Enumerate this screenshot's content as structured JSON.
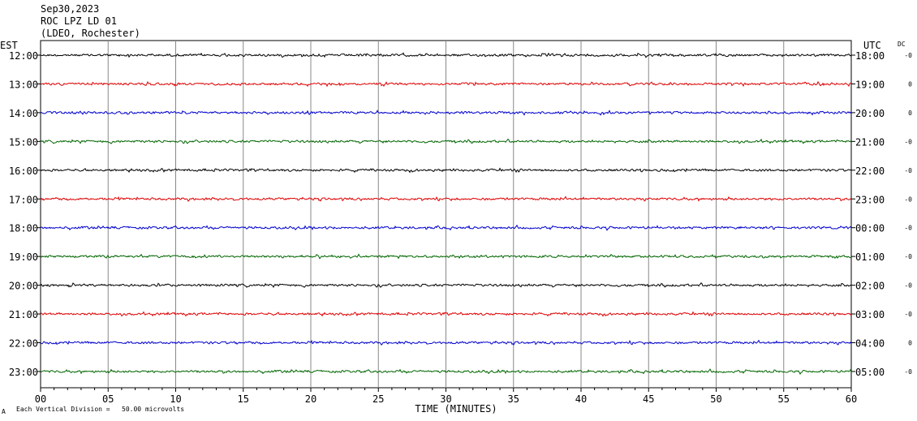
{
  "header": {
    "date": "Sep30,2023",
    "station": "ROC LPZ LD 01",
    "network": "(LDEO, Rochester)"
  },
  "labels": {
    "left_tz": "EST",
    "right_tz": "UTC",
    "dc": "DC",
    "footer_scale": "Each Vertical Division =   50.00 microvolts",
    "footer_mark": "A"
  },
  "chart_data": {
    "type": "line",
    "title": "",
    "xlabel": "TIME (MINUTES)",
    "ylabel": "",
    "xlim": [
      0,
      60
    ],
    "x_ticks": [
      "00",
      "05",
      "10",
      "15",
      "20",
      "25",
      "30",
      "35",
      "40",
      "45",
      "50",
      "55",
      "60"
    ],
    "grid": true,
    "series": [
      {
        "left_label": "12:00",
        "right_label": "18:00",
        "dc": "-0",
        "color": "#000000"
      },
      {
        "left_label": "13:00",
        "right_label": "19:00",
        "dc": "0",
        "color": "#dd0000"
      },
      {
        "left_label": "14:00",
        "right_label": "20:00",
        "dc": "0",
        "color": "#0000cc"
      },
      {
        "left_label": "15:00",
        "right_label": "21:00",
        "dc": "-0",
        "color": "#006600"
      },
      {
        "left_label": "16:00",
        "right_label": "22:00",
        "dc": "-0",
        "color": "#000000"
      },
      {
        "left_label": "17:00",
        "right_label": "23:00",
        "dc": "-0",
        "color": "#dd0000"
      },
      {
        "left_label": "18:00",
        "right_label": "00:00",
        "dc": "-0",
        "color": "#0000cc"
      },
      {
        "left_label": "19:00",
        "right_label": "01:00",
        "dc": "-0",
        "color": "#006600"
      },
      {
        "left_label": "20:00",
        "right_label": "02:00",
        "dc": "-0",
        "color": "#000000"
      },
      {
        "left_label": "21:00",
        "right_label": "03:00",
        "dc": "-0",
        "color": "#dd0000"
      },
      {
        "left_label": "22:00",
        "right_label": "04:00",
        "dc": "0",
        "color": "#0000cc"
      },
      {
        "left_label": "23:00",
        "right_label": "05:00",
        "dc": "-0",
        "color": "#006600"
      }
    ]
  }
}
